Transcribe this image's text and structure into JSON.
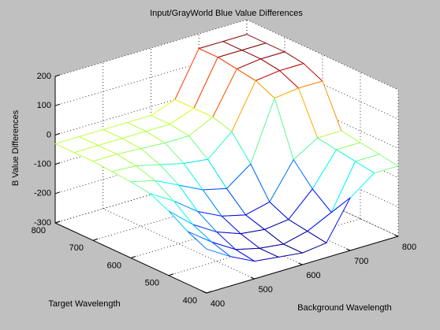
{
  "chart_data": {
    "type": "mesh",
    "title": "Input/GrayWorld Blue Value Differences",
    "xlabel": "Background Wavelength",
    "ylabel": "Target Wavelength",
    "zlabel": "B Value Differences",
    "x": [
      400,
      450,
      500,
      550,
      600,
      650,
      700,
      750,
      800
    ],
    "y": [
      400,
      450,
      500,
      550,
      600,
      650,
      700,
      750,
      800
    ],
    "z": [
      [
        -150,
        -200,
        -240,
        -250,
        -260,
        -250,
        -120,
        -60,
        -60
      ],
      [
        -120,
        -180,
        -230,
        -250,
        -260,
        -240,
        -200,
        -50,
        -50
      ],
      [
        -80,
        -150,
        -200,
        -230,
        -240,
        -230,
        -150,
        -40,
        -40
      ],
      [
        -50,
        -100,
        -160,
        -200,
        -220,
        -200,
        -80,
        -30,
        -30
      ],
      [
        -40,
        -60,
        -100,
        -140,
        -160,
        -100,
        100,
        110,
        110
      ],
      [
        -35,
        -40,
        -60,
        -80,
        -90,
        -20,
        130,
        140,
        140
      ],
      [
        -30,
        -30,
        -35,
        -40,
        -40,
        0,
        140,
        150,
        150
      ],
      [
        -30,
        -30,
        -30,
        -30,
        -30,
        0,
        150,
        150,
        150
      ],
      [
        -30,
        -30,
        -30,
        -30,
        -30,
        0,
        150,
        150,
        150
      ]
    ],
    "xlim": [
      400,
      800
    ],
    "ylim": [
      400,
      800
    ],
    "zlim": [
      -300,
      200
    ],
    "xticks": [
      400,
      500,
      600,
      700,
      800
    ],
    "yticks": [
      400,
      500,
      600,
      700,
      800
    ],
    "zticks": [
      -300,
      -200,
      -100,
      0,
      100,
      200
    ],
    "grid": true
  }
}
